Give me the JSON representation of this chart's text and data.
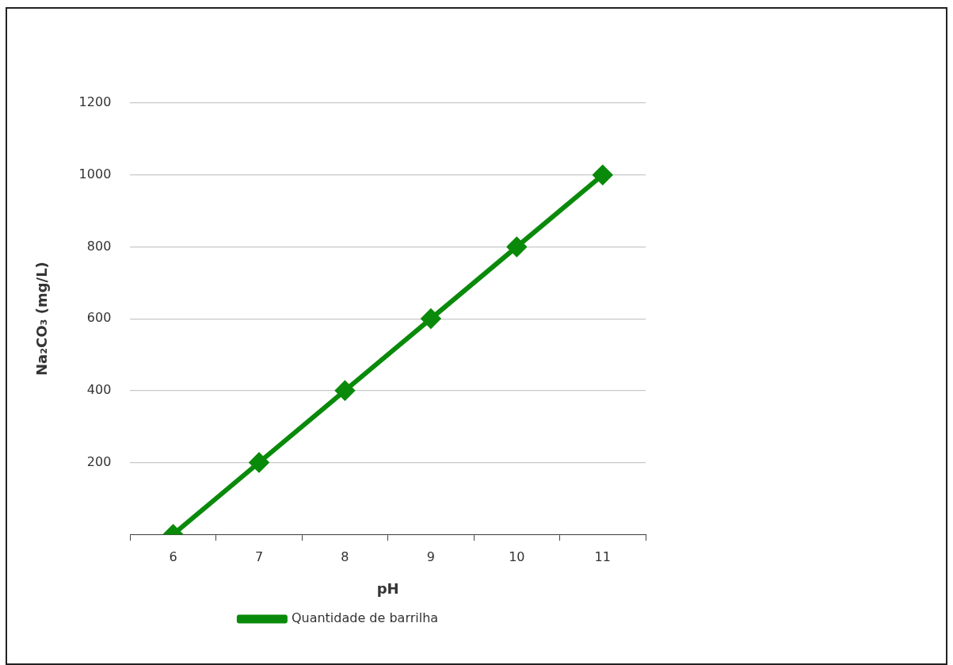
{
  "chart_data": {
    "type": "line",
    "xlabel": "pH",
    "ylabel": "Na₂CO₃ (mg/L)",
    "categories": [
      "6",
      "7",
      "8",
      "9",
      "10",
      "11"
    ],
    "series": [
      {
        "name": "Quantidade de barrilha",
        "color": "#0a8a0a",
        "values": [
          0,
          200,
          400,
          600,
          800,
          1000
        ]
      }
    ],
    "ylim": [
      0,
      1200
    ],
    "yticks": [
      {
        "value": 0,
        "label": null
      },
      200,
      400,
      600,
      800,
      1000,
      1200
    ],
    "grid": "y",
    "legend": "bottom",
    "marker": "diamond",
    "line_style": "solid"
  }
}
